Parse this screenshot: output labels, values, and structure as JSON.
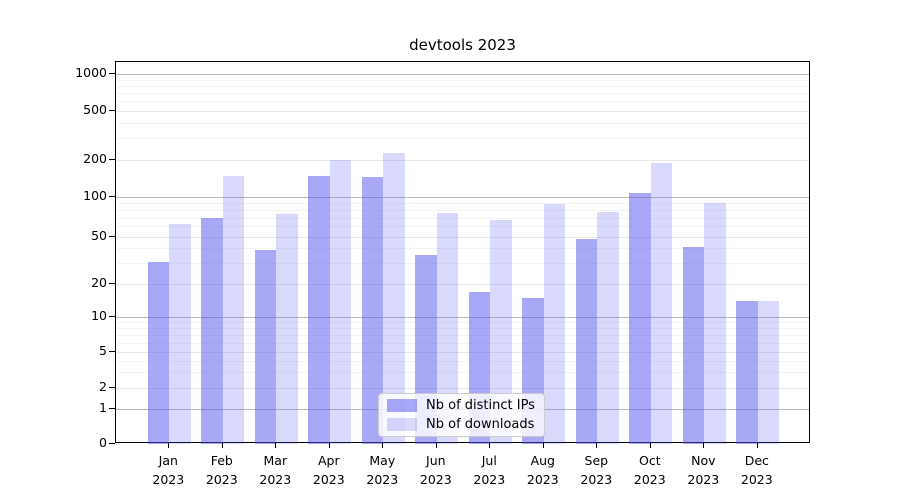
{
  "chart_data": {
    "type": "bar",
    "title": "devtools 2023",
    "categories": [
      "Jan 2023",
      "Feb 2023",
      "Mar 2023",
      "Apr 2023",
      "May 2023",
      "Jun 2023",
      "Jul 2023",
      "Aug 2023",
      "Sep 2023",
      "Oct 2023",
      "Nov 2023",
      "Dec 2023"
    ],
    "month_labels": [
      "Jan",
      "Feb",
      "Mar",
      "Apr",
      "May",
      "Jun",
      "Jul",
      "Aug",
      "Sep",
      "Oct",
      "Nov",
      "Dec"
    ],
    "year_label": "2023",
    "series": [
      {
        "name": "Nb of distinct IPs",
        "color": "#5252f0",
        "alpha": 0.5,
        "rendered_hex": "#a9a9f8",
        "values": [
          31,
          70,
          39,
          148,
          146,
          35,
          17,
          15,
          48,
          107,
          41,
          14
        ]
      },
      {
        "name": "Nb of downloads",
        "color": "#5252f0",
        "alpha": 0.22,
        "rendered_hex": "#d9d9fb",
        "values": [
          63,
          148,
          74,
          200,
          228,
          76,
          67,
          88,
          77,
          190,
          90,
          14
        ]
      }
    ],
    "yscale": "symlog",
    "yticks": [
      0,
      1,
      2,
      5,
      10,
      20,
      50,
      100,
      200,
      500,
      1000
    ],
    "ytick_labels": [
      "0",
      "1",
      "2",
      "5",
      "10",
      "20",
      "50",
      "100",
      "200",
      "500",
      "1000"
    ],
    "minor_yticks": [
      3,
      4,
      6,
      7,
      8,
      9,
      30,
      40,
      60,
      70,
      80,
      90,
      300,
      400,
      600,
      700,
      800,
      900
    ],
    "ylim": [
      0,
      1400
    ],
    "xlabel": "",
    "ylabel": "",
    "grid": true,
    "legend_position": "bottom-center-inside",
    "grid_major_color": "#bbbbbb",
    "grid_labeled_color": "#e8e8e8",
    "grid_minor_color": "#f4f4f4"
  }
}
